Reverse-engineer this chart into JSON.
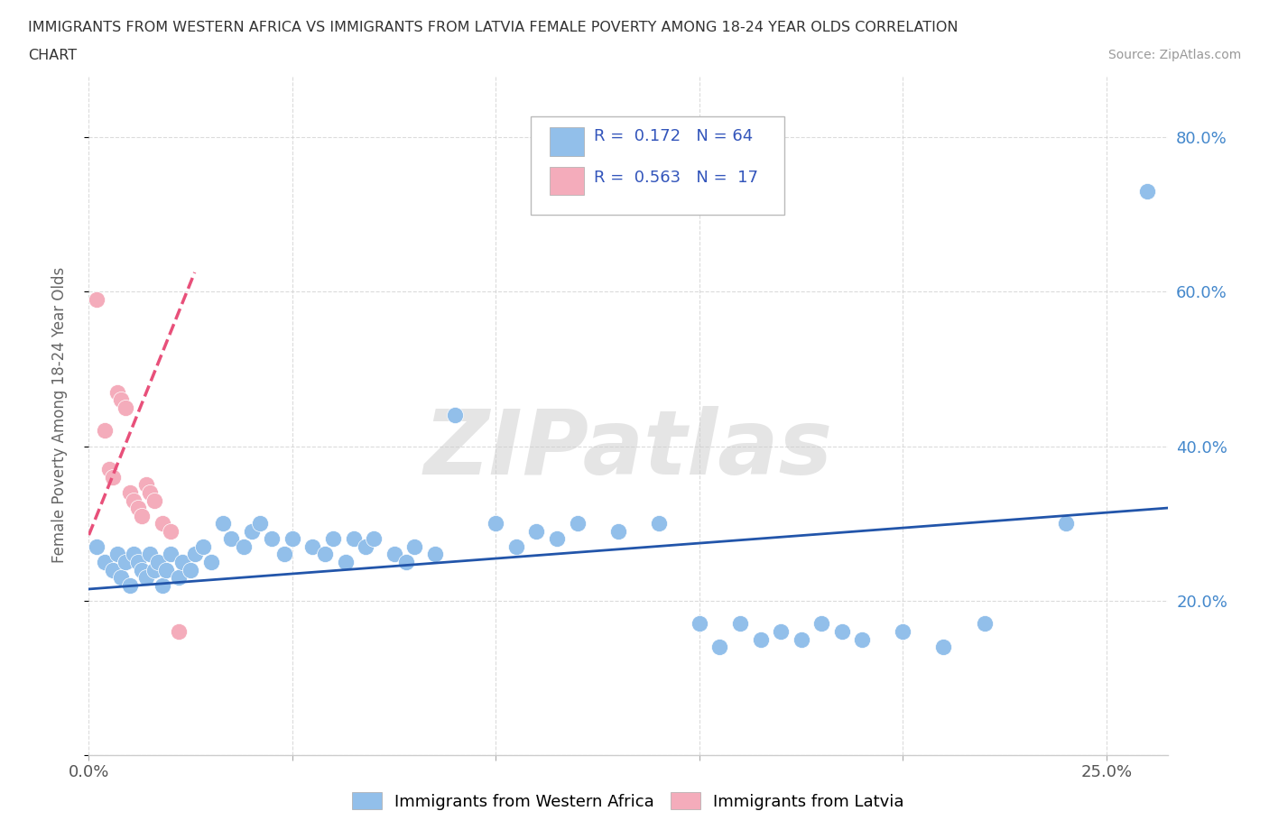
{
  "title_line1": "IMMIGRANTS FROM WESTERN AFRICA VS IMMIGRANTS FROM LATVIA FEMALE POVERTY AMONG 18-24 YEAR OLDS CORRELATION",
  "title_line2": "CHART",
  "source_text": "Source: ZipAtlas.com",
  "ylabel": "Female Poverty Among 18-24 Year Olds",
  "watermark": "ZIPatlas",
  "blue_color": "#92BFEA",
  "pink_color": "#F4ACBB",
  "blue_line_color": "#2255AA",
  "pink_line_color": "#E8507A",
  "text_color": "#3355BB",
  "right_tick_color": "#4488CC",
  "xlim": [
    0.0,
    0.265
  ],
  "ylim": [
    0.0,
    0.88
  ],
  "x_ticks": [
    0.0,
    0.05,
    0.1,
    0.15,
    0.2,
    0.25
  ],
  "y_ticks": [
    0.0,
    0.2,
    0.4,
    0.6,
    0.8
  ],
  "blue_x": [
    0.002,
    0.004,
    0.006,
    0.007,
    0.008,
    0.009,
    0.01,
    0.011,
    0.012,
    0.013,
    0.014,
    0.015,
    0.016,
    0.017,
    0.018,
    0.019,
    0.02,
    0.022,
    0.023,
    0.025,
    0.026,
    0.028,
    0.03,
    0.033,
    0.035,
    0.038,
    0.04,
    0.042,
    0.045,
    0.048,
    0.05,
    0.055,
    0.058,
    0.06,
    0.063,
    0.065,
    0.068,
    0.07,
    0.075,
    0.078,
    0.08,
    0.085,
    0.09,
    0.1,
    0.105,
    0.11,
    0.115,
    0.12,
    0.13,
    0.14,
    0.15,
    0.155,
    0.16,
    0.165,
    0.17,
    0.175,
    0.18,
    0.185,
    0.19,
    0.2,
    0.21,
    0.22,
    0.24,
    0.26
  ],
  "blue_y": [
    0.27,
    0.25,
    0.24,
    0.26,
    0.23,
    0.25,
    0.22,
    0.26,
    0.25,
    0.24,
    0.23,
    0.26,
    0.24,
    0.25,
    0.22,
    0.24,
    0.26,
    0.23,
    0.25,
    0.24,
    0.26,
    0.27,
    0.25,
    0.3,
    0.28,
    0.27,
    0.29,
    0.3,
    0.28,
    0.26,
    0.28,
    0.27,
    0.26,
    0.28,
    0.25,
    0.28,
    0.27,
    0.28,
    0.26,
    0.25,
    0.27,
    0.26,
    0.44,
    0.3,
    0.27,
    0.29,
    0.28,
    0.3,
    0.29,
    0.3,
    0.17,
    0.14,
    0.17,
    0.15,
    0.16,
    0.15,
    0.17,
    0.16,
    0.15,
    0.16,
    0.14,
    0.17,
    0.3,
    0.73
  ],
  "pink_x": [
    0.002,
    0.004,
    0.005,
    0.006,
    0.007,
    0.008,
    0.009,
    0.01,
    0.011,
    0.012,
    0.013,
    0.014,
    0.015,
    0.016,
    0.018,
    0.02,
    0.022
  ],
  "pink_y": [
    0.59,
    0.42,
    0.37,
    0.36,
    0.47,
    0.46,
    0.45,
    0.34,
    0.33,
    0.32,
    0.31,
    0.35,
    0.34,
    0.33,
    0.3,
    0.29,
    0.16
  ],
  "blue_trend_x": [
    0.0,
    0.265
  ],
  "blue_trend_y": [
    0.215,
    0.32
  ],
  "pink_trend_x": [
    0.0,
    0.026
  ],
  "pink_trend_y": [
    0.285,
    0.625
  ]
}
